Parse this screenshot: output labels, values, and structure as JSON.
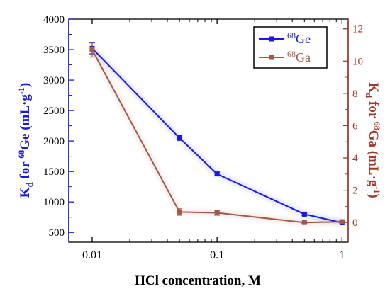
{
  "chart_data": {
    "type": "line",
    "x_scale": "log",
    "xlabel": "HCl concentration, M",
    "x_ticks": [
      0.01,
      0.1,
      1
    ],
    "x_tick_labels": [
      "0.01",
      "0.1",
      "1"
    ],
    "xlim": [
      0.0065,
      1.12
    ],
    "ylabel_left": {
      "prefix": "K",
      "sub": "d",
      "middle": " for ",
      "sup": "68",
      "suffix": "Ge (mL·g",
      "suffix_sup": "-1",
      "end": ")"
    },
    "ylabel_right": {
      "prefix": "K",
      "sub": "d",
      "middle": " for ",
      "sup": "68",
      "suffix": "Ga (mL·g",
      "suffix_sup": "-1",
      "end": ")"
    },
    "ylim_left": [
      340,
      4000
    ],
    "y_ticks_left": [
      500,
      1000,
      1500,
      2000,
      2500,
      3000,
      3500,
      4000
    ],
    "ylim_right": [
      -1.22,
      12.6
    ],
    "y_ticks_right": [
      0,
      2,
      4,
      6,
      8,
      10,
      12
    ],
    "legend_position": "top-right",
    "series": [
      {
        "name": {
          "sup": "68",
          "base": "Ge"
        },
        "axis": "left",
        "color": "#1a1adc",
        "marker": "square",
        "x": [
          0.01,
          0.05,
          0.1,
          0.5,
          1
        ],
        "y": [
          3520,
          2050,
          1460,
          800,
          660
        ],
        "err": [
          90,
          40,
          30,
          20,
          20
        ]
      },
      {
        "name": {
          "sup": "68",
          "base": "Ga"
        },
        "axis": "right",
        "color": "#a05a4a",
        "marker": "square",
        "x": [
          0.01,
          0.05,
          0.1,
          0.5,
          1
        ],
        "y": [
          10.7,
          0.65,
          0.6,
          0.0,
          0.05
        ],
        "err": [
          0.45,
          0.2,
          0.15,
          0.05,
          0.05
        ]
      }
    ],
    "colors": {
      "left_axis": "#1a1adc",
      "right_axis": "#a03a2a",
      "frame": "#000000"
    }
  }
}
